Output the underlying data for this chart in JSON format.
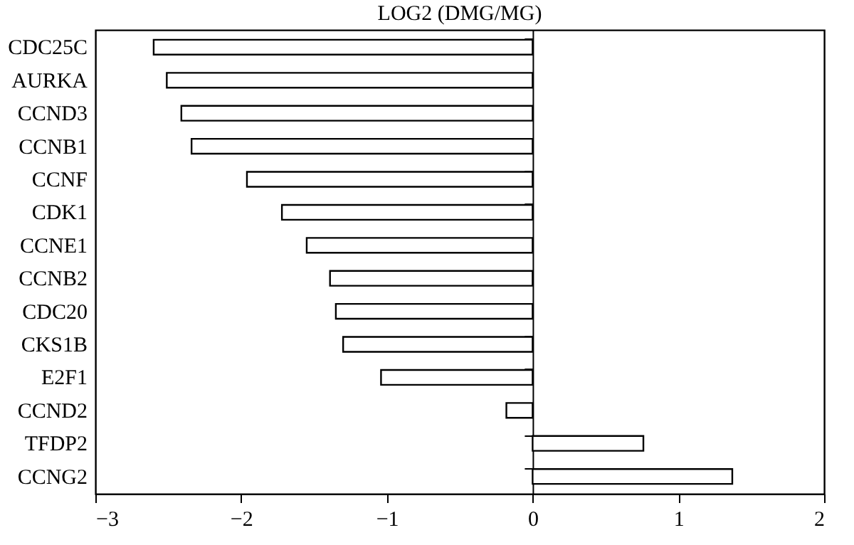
{
  "chart_data": {
    "type": "bar",
    "orientation": "horizontal",
    "title": "LOG2 (DMG/MG)",
    "categories": [
      "CDC25C",
      "AURKA",
      "CCND3",
      "CCNB1",
      "CCNF",
      "CDK1",
      "CCNE1",
      "CCNB2",
      "CDC20",
      "CKS1B",
      "E2F1",
      "CCND2",
      "TFDP2",
      "CCNG2"
    ],
    "values": [
      -2.6,
      -2.51,
      -2.41,
      -2.34,
      -1.96,
      -1.72,
      -1.55,
      -1.39,
      -1.35,
      -1.3,
      -1.04,
      -0.18,
      0.76,
      1.37
    ],
    "color": "#ffffff",
    "xlim": [
      -3,
      2
    ],
    "xticks": [
      -3,
      -2,
      -1,
      0,
      1,
      2
    ]
  }
}
